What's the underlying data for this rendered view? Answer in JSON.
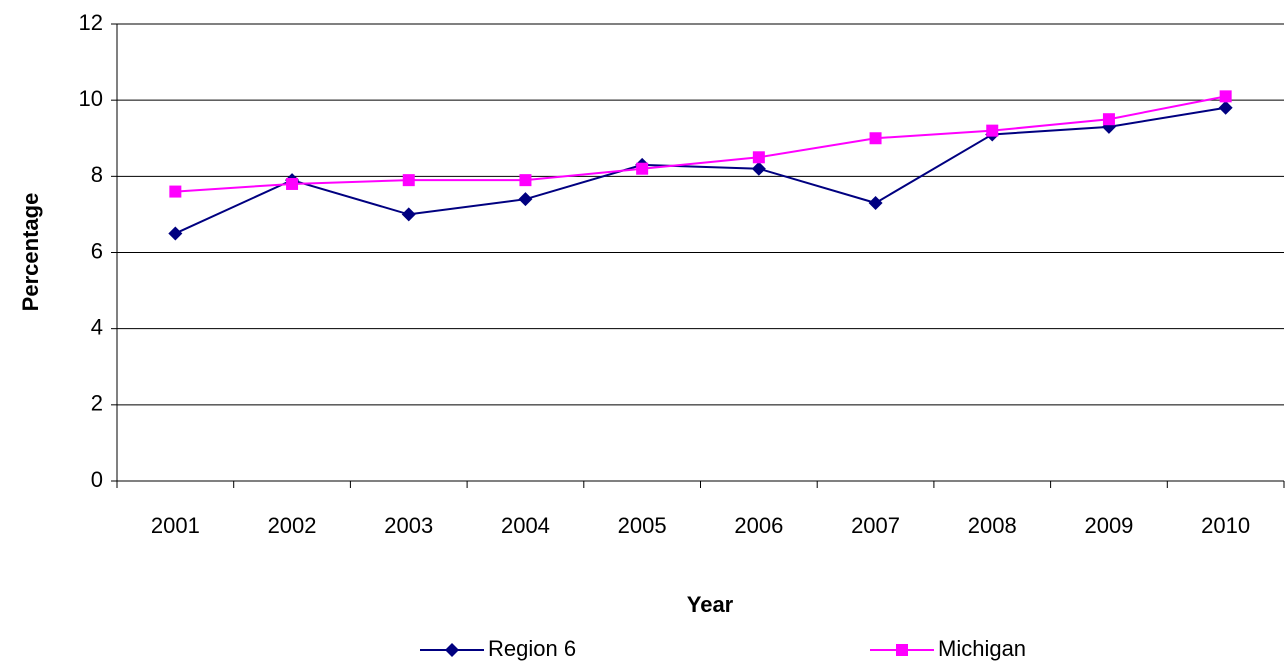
{
  "chart_data": {
    "type": "line",
    "x_label": "Year",
    "y_label": "Percentage",
    "categories": [
      "2001",
      "2002",
      "2003",
      "2004",
      "2005",
      "2006",
      "2007",
      "2008",
      "2009",
      "2010"
    ],
    "series": [
      {
        "name": "Region 6",
        "color": "#000080",
        "marker": "diamond",
        "values": [
          6.5,
          7.9,
          7.0,
          7.4,
          8.3,
          8.2,
          7.3,
          9.1,
          9.3,
          9.8
        ]
      },
      {
        "name": "Michigan",
        "color": "#ff00ff",
        "marker": "square",
        "values": [
          7.6,
          7.8,
          7.9,
          7.9,
          8.2,
          8.5,
          9.0,
          9.2,
          9.5,
          10.1
        ]
      }
    ],
    "ylim": [
      0,
      12
    ],
    "yticks": [
      0,
      2,
      4,
      6,
      8,
      10,
      12
    ],
    "grid": true,
    "legend": "bottom"
  }
}
